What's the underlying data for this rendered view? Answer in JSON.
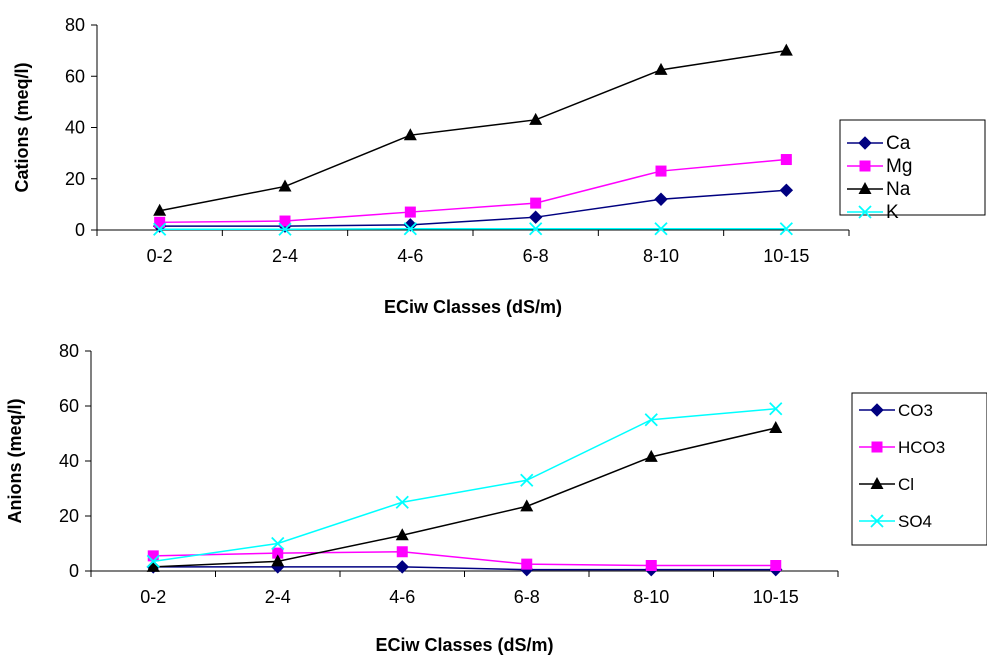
{
  "chart_data": [
    {
      "type": "line",
      "categories": [
        "0-2",
        "2-4",
        "4-6",
        "6-8",
        "8-10",
        "10-15"
      ],
      "xlabel": "ECiw Classes (dS/m)",
      "ylabel": "Cations (meq/l)",
      "ylim": [
        0,
        80
      ],
      "yticks": [
        "0",
        "20",
        "40",
        "60",
        "80"
      ],
      "grid": false,
      "legend_position": "right",
      "series": [
        {
          "name": "Ca",
          "color": "#000080",
          "marker": "diamond",
          "values": [
            1.5,
            1.5,
            2,
            5,
            12,
            15.5
          ]
        },
        {
          "name": "Mg",
          "color": "#ff00ff",
          "marker": "square",
          "values": [
            3,
            3.5,
            7,
            10.5,
            23,
            27.5
          ]
        },
        {
          "name": "Na",
          "color": "#000000",
          "marker": "triangle",
          "values": [
            7.5,
            17,
            37,
            43,
            62.5,
            70
          ]
        },
        {
          "name": "K",
          "color": "#00ffff",
          "marker": "x",
          "values": [
            0.3,
            0.3,
            0.5,
            0.5,
            0.5,
            0.5
          ]
        }
      ]
    },
    {
      "type": "line",
      "categories": [
        "0-2",
        "2-4",
        "4-6",
        "6-8",
        "8-10",
        "10-15"
      ],
      "xlabel": "ECiw Classes (dS/m)",
      "ylabel": "Anions (meq/l)",
      "ylim": [
        0,
        80
      ],
      "yticks": [
        "0",
        "20",
        "40",
        "60",
        "80"
      ],
      "grid": false,
      "legend_position": "right",
      "series": [
        {
          "name": "CO3",
          "color": "#000080",
          "marker": "diamond",
          "values": [
            1.5,
            1.5,
            1.5,
            0.5,
            0.5,
            0.5
          ]
        },
        {
          "name": "HCO3",
          "color": "#ff00ff",
          "marker": "square",
          "values": [
            5.5,
            6.5,
            7,
            2.5,
            2,
            2
          ]
        },
        {
          "name": "Cl",
          "color": "#000000",
          "marker": "triangle",
          "values": [
            1.5,
            3.5,
            13,
            23.5,
            41.5,
            52
          ]
        },
        {
          "name": "SO4",
          "color": "#00ffff",
          "marker": "x",
          "values": [
            3.5,
            10,
            25,
            33,
            55,
            59
          ]
        }
      ]
    }
  ]
}
